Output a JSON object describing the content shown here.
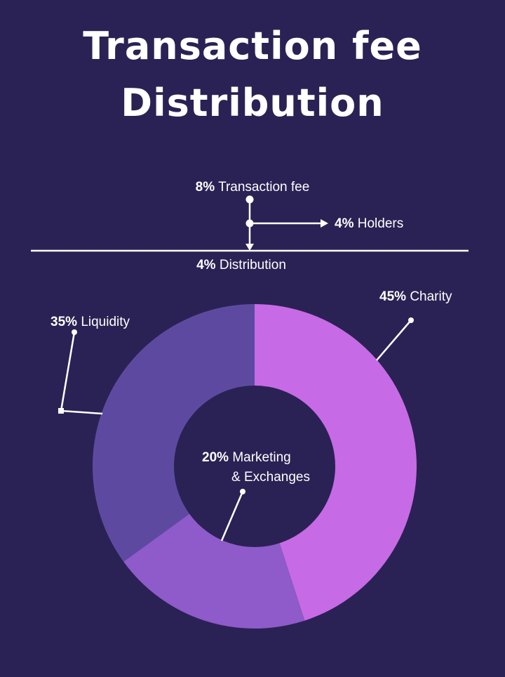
{
  "title_line1": "Transaction fee",
  "title_line2": "Distribution",
  "flow": {
    "top": {
      "pct": "8%",
      "label": "Transaction fee"
    },
    "right": {
      "pct": "4%",
      "label": "Holders"
    },
    "bottom": {
      "pct": "4%",
      "label": "Distribution"
    }
  },
  "chart_data": {
    "type": "pie",
    "donut": true,
    "categories": [
      "Charity",
      "Marketing & Exchanges",
      "Liquidity"
    ],
    "values": [
      45,
      20,
      35
    ],
    "colors": [
      "#c76ae6",
      "#8f5ac9",
      "#5d4aa0"
    ],
    "labels": {
      "charity": {
        "pct": "45%",
        "text": "Charity"
      },
      "marketing": {
        "pct": "20%",
        "line1": "Marketing",
        "line2": "& Exchanges"
      },
      "liquidity": {
        "pct": "35%",
        "text": "Liquidity"
      }
    }
  },
  "colors": {
    "background": "#2a2254",
    "text": "#ffffff"
  }
}
